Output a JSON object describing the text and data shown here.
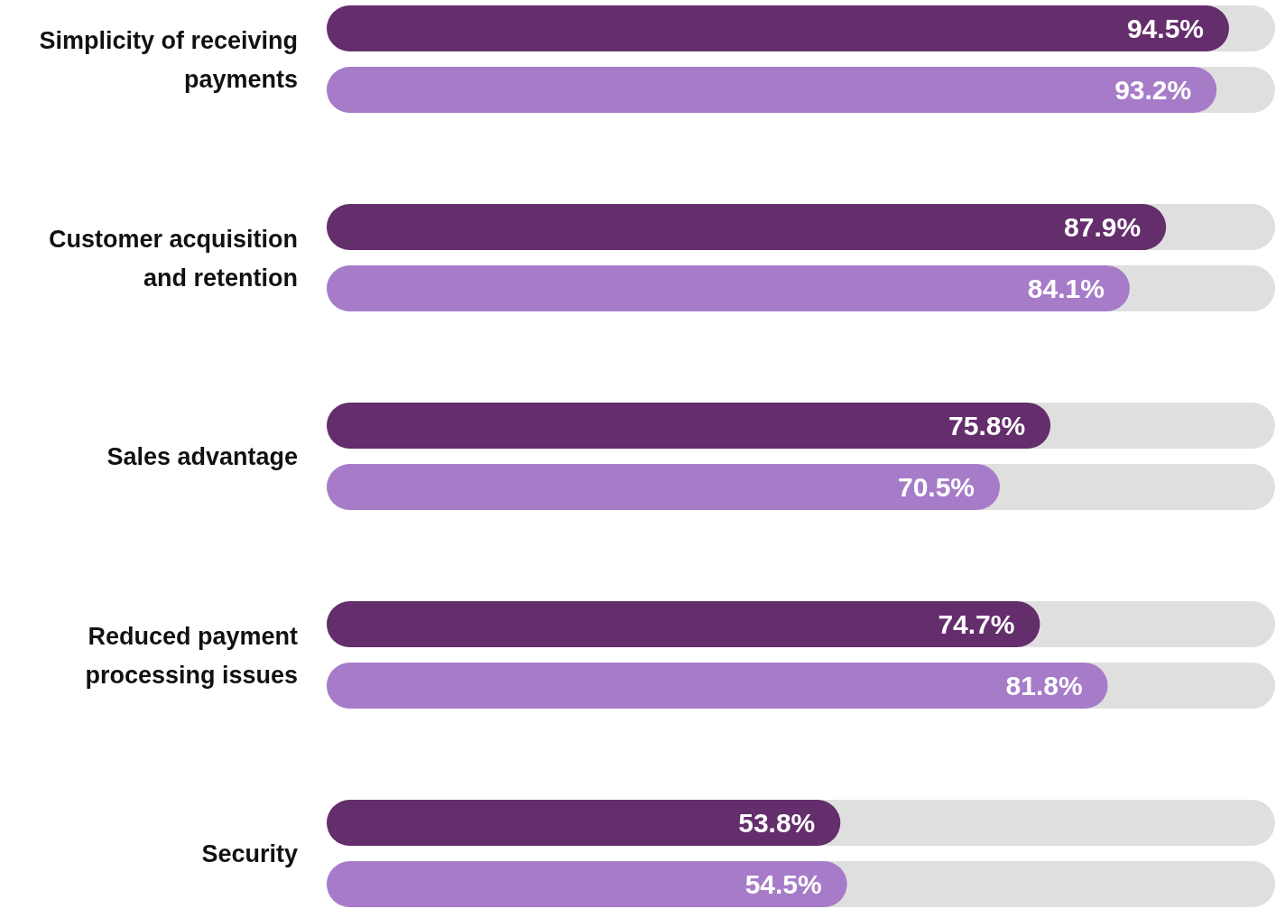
{
  "chart_data": {
    "type": "bar",
    "orientation": "horizontal",
    "categories": [
      "Simplicity of receiving payments",
      "Customer acquisition and retention",
      "Sales advantage",
      "Reduced payment processing issues",
      "Security"
    ],
    "series": [
      {
        "color": "#642d6b",
        "values": [
          94.5,
          87.9,
          75.8,
          74.7,
          53.8
        ],
        "value_labels": [
          "94.5%",
          "87.9%",
          "75.8%",
          "74.7%",
          "53.8%"
        ]
      },
      {
        "color": "#a67cc9",
        "values": [
          93.2,
          84.1,
          70.5,
          81.8,
          54.5
        ],
        "value_labels": [
          "93.2%",
          "84.1%",
          "70.5%",
          "81.8%",
          "54.5%"
        ]
      }
    ],
    "tick_labels": "y"
  }
}
